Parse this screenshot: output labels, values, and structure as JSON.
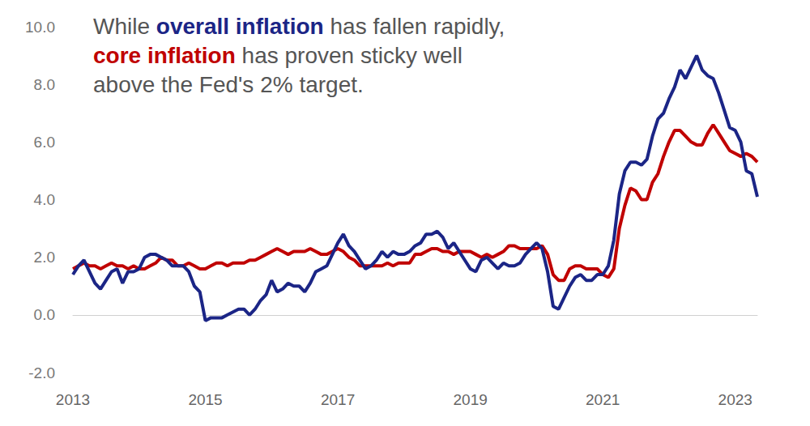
{
  "chart_data": {
    "type": "line",
    "annotation": [
      [
        {
          "text": "While "
        },
        {
          "text": "overall inflation",
          "color": "#1b2586"
        },
        {
          "text": " has fallen rapidly,"
        }
      ],
      [
        {
          "text": "core inflation",
          "color": "#c00000"
        },
        {
          "text": " has proven sticky well"
        }
      ],
      [
        {
          "text": "above the Fed's 2% target."
        }
      ]
    ],
    "categories": [
      "2013",
      null,
      null,
      null,
      null,
      null,
      null,
      null,
      null,
      null,
      null,
      null,
      null,
      null,
      null,
      null,
      null,
      null,
      null,
      null,
      null,
      null,
      null,
      null,
      "2015",
      null,
      null,
      null,
      null,
      null,
      null,
      null,
      null,
      null,
      null,
      null,
      null,
      null,
      null,
      null,
      null,
      null,
      null,
      null,
      null,
      null,
      null,
      null,
      "2017",
      null,
      null,
      null,
      null,
      null,
      null,
      null,
      null,
      null,
      null,
      null,
      null,
      null,
      null,
      null,
      null,
      null,
      null,
      null,
      null,
      null,
      null,
      null,
      "2019",
      null,
      null,
      null,
      null,
      null,
      null,
      null,
      null,
      null,
      null,
      null,
      null,
      null,
      null,
      null,
      null,
      null,
      null,
      null,
      null,
      null,
      null,
      null,
      "2021",
      null,
      null,
      null,
      null,
      null,
      null,
      null,
      null,
      null,
      null,
      null,
      null,
      null,
      null,
      null,
      null,
      null,
      null,
      null,
      null,
      null,
      null,
      null,
      "2023",
      null,
      null,
      null,
      null
    ],
    "series": [
      {
        "name": "overall inflation",
        "color": "#1b2586",
        "values": [
          1.4,
          1.7,
          1.9,
          1.5,
          1.1,
          0.9,
          1.2,
          1.5,
          1.6,
          1.1,
          1.5,
          1.5,
          1.6,
          2.0,
          2.1,
          2.1,
          2.0,
          1.9,
          1.7,
          1.7,
          1.7,
          1.5,
          1.0,
          0.8,
          -0.2,
          -0.1,
          -0.1,
          -0.1,
          0.0,
          0.1,
          0.2,
          0.2,
          0.0,
          0.2,
          0.5,
          0.7,
          1.2,
          0.8,
          0.9,
          1.1,
          1.0,
          1.0,
          0.8,
          1.1,
          1.5,
          1.6,
          1.7,
          2.1,
          2.5,
          2.8,
          2.4,
          2.2,
          1.9,
          1.6,
          1.7,
          1.9,
          2.2,
          2.0,
          2.2,
          2.1,
          2.1,
          2.2,
          2.4,
          2.5,
          2.8,
          2.8,
          2.9,
          2.7,
          2.3,
          2.5,
          2.2,
          1.9,
          1.6,
          1.5,
          1.9,
          2.0,
          1.8,
          1.6,
          1.8,
          1.7,
          1.7,
          1.8,
          2.1,
          2.3,
          2.5,
          2.3,
          1.5,
          0.3,
          0.2,
          0.6,
          1.0,
          1.3,
          1.4,
          1.2,
          1.2,
          1.4,
          1.4,
          1.7,
          2.6,
          4.2,
          5.0,
          5.3,
          5.3,
          5.2,
          5.4,
          6.2,
          6.8,
          7.0,
          7.5,
          7.9,
          8.5,
          8.2,
          8.6,
          9.0,
          8.5,
          8.3,
          8.2,
          7.7,
          7.1,
          6.5,
          6.4,
          6.0,
          5.0,
          4.9,
          4.1
        ]
      },
      {
        "name": "core inflation",
        "color": "#c00000",
        "values": [
          1.6,
          1.7,
          1.8,
          1.7,
          1.7,
          1.6,
          1.7,
          1.8,
          1.7,
          1.7,
          1.6,
          1.7,
          1.6,
          1.6,
          1.7,
          1.8,
          2.0,
          1.9,
          1.9,
          1.7,
          1.7,
          1.8,
          1.7,
          1.6,
          1.6,
          1.7,
          1.8,
          1.8,
          1.7,
          1.8,
          1.8,
          1.8,
          1.9,
          1.9,
          2.0,
          2.1,
          2.2,
          2.3,
          2.2,
          2.1,
          2.2,
          2.2,
          2.2,
          2.3,
          2.2,
          2.1,
          2.1,
          2.2,
          2.3,
          2.2,
          2.0,
          1.9,
          1.7,
          1.7,
          1.7,
          1.7,
          1.7,
          1.8,
          1.7,
          1.8,
          1.8,
          1.8,
          2.1,
          2.1,
          2.2,
          2.3,
          2.3,
          2.2,
          2.2,
          2.1,
          2.2,
          2.2,
          2.2,
          2.1,
          2.0,
          2.1,
          2.0,
          2.1,
          2.2,
          2.4,
          2.4,
          2.3,
          2.3,
          2.3,
          2.3,
          2.4,
          2.1,
          1.4,
          1.2,
          1.2,
          1.6,
          1.7,
          1.7,
          1.6,
          1.6,
          1.6,
          1.4,
          1.3,
          1.6,
          3.0,
          3.8,
          4.4,
          4.3,
          4.0,
          4.0,
          4.6,
          4.9,
          5.5,
          6.0,
          6.4,
          6.4,
          6.2,
          6.0,
          5.9,
          5.9,
          6.3,
          6.6,
          6.3,
          6.0,
          5.7,
          5.6,
          5.5,
          5.6,
          5.5,
          5.3
        ]
      }
    ],
    "ylim": [
      -2,
      10
    ],
    "yticks": [
      {
        "value": -2,
        "label": "-2.0"
      },
      {
        "value": 0,
        "label": "0.0"
      },
      {
        "value": 2,
        "label": "2.0"
      },
      {
        "value": 4,
        "label": "4.0"
      },
      {
        "value": 6,
        "label": "6.0"
      },
      {
        "value": 8,
        "label": "8.0"
      },
      {
        "value": 10,
        "label": "10.0"
      }
    ],
    "grid": false
  }
}
